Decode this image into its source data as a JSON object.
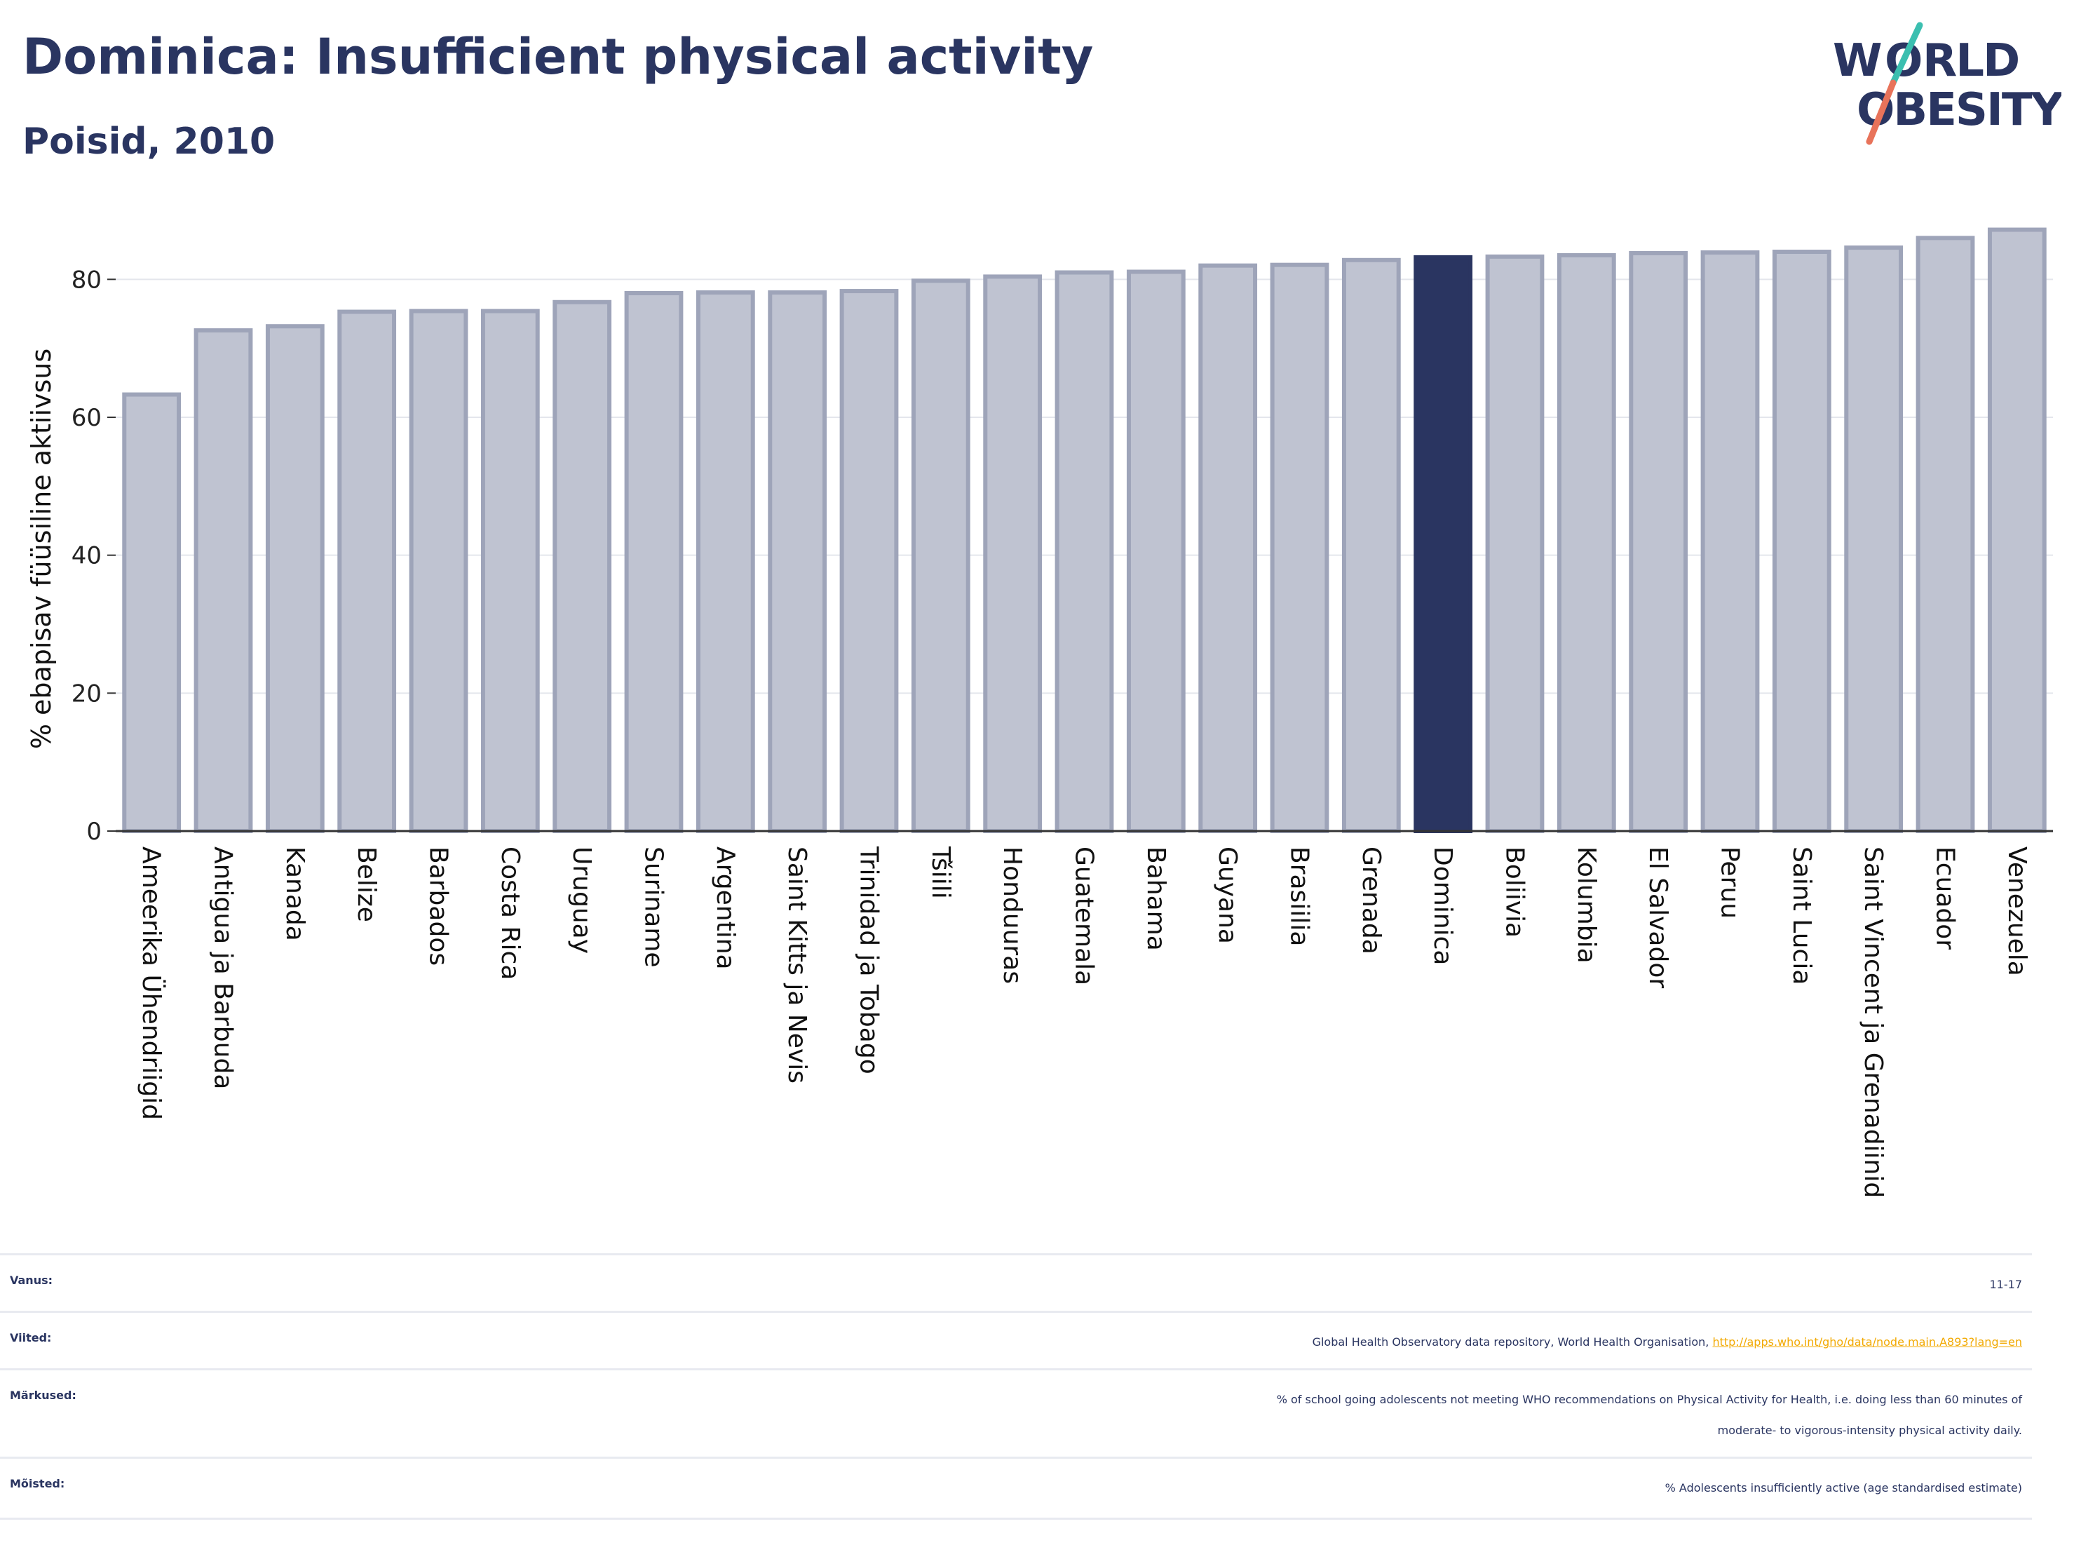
{
  "header": {
    "title": "Dominica: Insufficient physical activity",
    "subtitle": "Poisid, 2010"
  },
  "logo": {
    "line1": "WORLD",
    "line2": "OBESITY",
    "slash_colors": [
      "#3bbfb0",
      "#e8735a"
    ]
  },
  "chart_data": {
    "type": "bar",
    "ylabel": "% ebapisav füüsiline aktiivsus",
    "xlabel": "",
    "ylim": [
      0,
      90
    ],
    "yticks": [
      0,
      20,
      40,
      60,
      80
    ],
    "grid": true,
    "highlight": "Dominica",
    "colors": {
      "bar": "#bfc3d1",
      "bar_edge": "#9ea4b9",
      "highlight": "#2a3561"
    },
    "categories": [
      "Ameerika Ühendriigid",
      "Antigua ja Barbuda",
      "Kanada",
      "Belize",
      "Barbados",
      "Costa Rica",
      "Uruguay",
      "Suriname",
      "Argentina",
      "Saint Kitts ja Nevis",
      "Trinidad ja Tobago",
      "Tšiili",
      "Honduuras",
      "Guatemala",
      "Bahama",
      "Guyana",
      "Brasiilia",
      "Grenada",
      "Dominica",
      "Boliivia",
      "Kolumbia",
      "El Salvador",
      "Peruu",
      "Saint Lucia",
      "Saint Vincent ja Grenadiinid",
      "Ecuador",
      "Venezuela"
    ],
    "values": [
      63.3,
      72.6,
      73.2,
      75.3,
      75.4,
      75.4,
      76.7,
      78.0,
      78.1,
      78.1,
      78.3,
      79.8,
      80.4,
      81.0,
      81.1,
      82.0,
      82.1,
      82.8,
      83.2,
      83.3,
      83.5,
      83.8,
      83.9,
      84.0,
      84.6,
      86.0,
      87.2
    ]
  },
  "meta": [
    {
      "label": "Vanus:",
      "value": "11-17"
    },
    {
      "label": "Viited:",
      "value": "Global Health Observatory data repository, World Health Organisation, ",
      "link": "http://apps.who.int/gho/data/node.main.A893?lang=en"
    },
    {
      "label": "Märkused:",
      "value_line1": "% of school going adolescents not meeting WHO recommendations on Physical Activity for Health, i.e. doing less than 60 minutes of",
      "value_line2": "moderate- to vigorous-intensity physical activity daily."
    },
    {
      "label": "Mõisted:",
      "value": "% Adolescents insufficiently active (age standardised estimate)"
    }
  ]
}
